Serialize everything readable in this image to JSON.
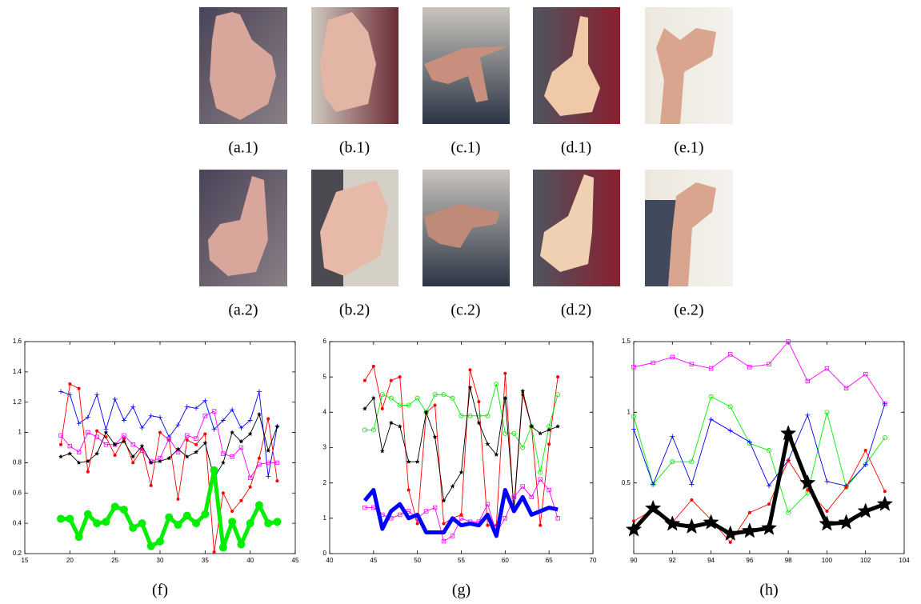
{
  "images": [
    {
      "caption": "(a.1)"
    },
    {
      "caption": "(b.1)"
    },
    {
      "caption": "(c.1)"
    },
    {
      "caption": "(d.1)"
    },
    {
      "caption": "(e.1)"
    },
    {
      "caption": "(a.2)"
    },
    {
      "caption": "(b.2)"
    },
    {
      "caption": "(c.2)"
    },
    {
      "caption": "(d.2)"
    },
    {
      "caption": "(e.2)"
    }
  ],
  "chart_data": [
    {
      "type": "line",
      "caption": "(f)",
      "xlim": [
        15,
        45
      ],
      "xticks": [
        15,
        20,
        25,
        30,
        35,
        40,
        45
      ],
      "ylim": [
        0.2,
        1.6
      ],
      "yticks": [
        0.2,
        0.4,
        0.6,
        0.8,
        1,
        1.2,
        1.4,
        1.6
      ],
      "x": [
        19,
        20,
        21,
        22,
        23,
        24,
        25,
        26,
        27,
        28,
        29,
        30,
        31,
        32,
        33,
        34,
        35,
        36,
        37,
        38,
        39,
        40,
        41,
        42,
        43
      ],
      "series": [
        {
          "color": "#0000ff",
          "marker": "plus",
          "values": [
            1.27,
            1.25,
            1.06,
            1.1,
            1.25,
            1.02,
            1.22,
            1.08,
            1.17,
            1.03,
            1.11,
            1.1,
            0.97,
            1.05,
            1.17,
            1.16,
            1.21,
            1.02,
            1.08,
            1.15,
            1.03,
            1.08,
            1.27,
            0.71,
            1.04
          ]
        },
        {
          "color": "#ff0000",
          "marker": "dot",
          "values": [
            0.92,
            1.32,
            1.29,
            0.74,
            1.01,
            0.97,
            0.85,
            0.96,
            0.8,
            0.89,
            0.65,
            1.0,
            0.95,
            0.56,
            0.95,
            0.92,
            0.99,
            0.21,
            0.6,
            0.48,
            0.55,
            0.64,
            0.83,
            1.09,
            0.68
          ]
        },
        {
          "color": "#ff00ff",
          "marker": "square",
          "values": [
            0.98,
            0.91,
            0.87,
            1.0,
            0.97,
            0.92,
            0.92,
            0.98,
            0.92,
            0.88,
            0.81,
            0.83,
            0.96,
            0.87,
            0.98,
            0.96,
            1.11,
            1.14,
            0.86,
            0.84,
            0.9,
            0.7,
            0.79,
            0.8,
            0.8
          ]
        },
        {
          "color": "#000000",
          "marker": "star",
          "values": [
            0.84,
            0.86,
            0.8,
            0.81,
            0.86,
            1.0,
            0.92,
            0.94,
            0.84,
            0.91,
            0.8,
            0.81,
            0.83,
            0.89,
            0.84,
            0.87,
            0.93,
            0.7,
            0.8,
            1.0,
            0.94,
            0.99,
            1.12,
            0.88,
            1.04
          ]
        },
        {
          "color": "#00ee00",
          "marker": "dot",
          "thick": true,
          "values": [
            0.43,
            0.43,
            0.31,
            0.46,
            0.4,
            0.41,
            0.51,
            0.49,
            0.37,
            0.4,
            0.25,
            0.28,
            0.44,
            0.39,
            0.45,
            0.4,
            0.46,
            0.75,
            0.24,
            0.41,
            0.26,
            0.4,
            0.52,
            0.4,
            0.41
          ]
        }
      ]
    },
    {
      "type": "line",
      "caption": "(g)",
      "xlim": [
        40,
        70
      ],
      "xticks": [
        40,
        45,
        50,
        55,
        60,
        65,
        70
      ],
      "ylim": [
        0,
        6
      ],
      "yticks": [
        0,
        1,
        2,
        3,
        4,
        5,
        6
      ],
      "x": [
        44,
        45,
        46,
        47,
        48,
        49,
        50,
        51,
        52,
        53,
        54,
        55,
        56,
        57,
        58,
        59,
        60,
        61,
        62,
        63,
        64,
        65,
        66
      ],
      "series": [
        {
          "color": "#ff0000",
          "marker": "dot",
          "values": [
            4.9,
            5.3,
            4.1,
            4.9,
            5.0,
            1.8,
            0.85,
            4.0,
            4.2,
            0.85,
            1.0,
            1.1,
            5.2,
            4.3,
            0.8,
            0.8,
            5.1,
            1.2,
            4.5,
            3.6,
            0.8,
            3.1,
            5.0
          ]
        },
        {
          "color": "#00ee00",
          "marker": "circle",
          "values": [
            3.5,
            3.5,
            4.5,
            4.4,
            4.2,
            4.2,
            4.4,
            4.0,
            4.5,
            4.5,
            4.4,
            3.9,
            3.9,
            3.9,
            3.9,
            4.8,
            3.4,
            3.4,
            3.0,
            3.6,
            2.3,
            3.6,
            4.5
          ]
        },
        {
          "color": "#000000",
          "marker": "star",
          "values": [
            4.1,
            4.4,
            2.9,
            3.7,
            3.6,
            2.6,
            2.6,
            4.0,
            3.3,
            1.5,
            1.9,
            2.3,
            4.7,
            3.7,
            3.1,
            2.8,
            4.4,
            1.3,
            4.6,
            3.6,
            3.4,
            3.5,
            3.6
          ]
        },
        {
          "color": "#ff00ff",
          "marker": "square",
          "values": [
            1.3,
            1.3,
            1.1,
            1.0,
            1.1,
            1.2,
            1.0,
            1.2,
            1.3,
            0.35,
            0.5,
            1.0,
            0.9,
            0.9,
            1.4,
            0.6,
            1.0,
            1.6,
            1.9,
            1.6,
            2.1,
            1.8,
            1.0
          ]
        },
        {
          "color": "#0000ff",
          "marker": "none",
          "thick": true,
          "values": [
            1.5,
            1.8,
            0.7,
            1.2,
            1.4,
            1.0,
            1.1,
            0.6,
            0.6,
            0.6,
            1.0,
            0.8,
            0.85,
            0.8,
            1.1,
            0.5,
            1.8,
            1.2,
            1.6,
            1.1,
            1.2,
            1.3,
            1.25
          ]
        }
      ]
    },
    {
      "type": "line",
      "caption": "(h)",
      "xlim": [
        90,
        104
      ],
      "xticks": [
        90,
        92,
        94,
        96,
        98,
        100,
        102,
        104
      ],
      "ylim": [
        0,
        1.5
      ],
      "yticks": [
        0.5,
        1,
        1.5
      ],
      "x": [
        90,
        91,
        92,
        93,
        94,
        95,
        96,
        97,
        98,
        99,
        100,
        101,
        102,
        103
      ],
      "series": [
        {
          "color": "#ff00ff",
          "marker": "square",
          "values": [
            1.32,
            1.35,
            1.39,
            1.34,
            1.31,
            1.41,
            1.32,
            1.34,
            1.5,
            1.22,
            1.31,
            1.17,
            1.27,
            1.06
          ]
        },
        {
          "color": "#00ee00",
          "marker": "circle",
          "values": [
            0.97,
            0.49,
            0.65,
            0.65,
            1.11,
            1.04,
            0.78,
            0.73,
            0.29,
            0.43,
            1.0,
            0.47,
            0.63,
            0.82
          ]
        },
        {
          "color": "#0000ff",
          "marker": "plus",
          "values": [
            0.88,
            0.49,
            0.83,
            0.49,
            0.95,
            0.87,
            0.79,
            0.48,
            0.66,
            0.98,
            0.51,
            0.48,
            0.63,
            1.06
          ]
        },
        {
          "color": "#ff0000",
          "marker": "dot",
          "values": [
            0.23,
            0.31,
            0.22,
            0.38,
            0.24,
            0.08,
            0.29,
            0.35,
            0.66,
            0.45,
            0.3,
            0.47,
            0.73,
            0.44
          ]
        },
        {
          "color": "#000000",
          "marker": "star",
          "thick": true,
          "values": [
            0.17,
            0.32,
            0.21,
            0.19,
            0.22,
            0.14,
            0.16,
            0.18,
            0.85,
            0.5,
            0.21,
            0.22,
            0.3,
            0.35
          ]
        }
      ]
    }
  ]
}
